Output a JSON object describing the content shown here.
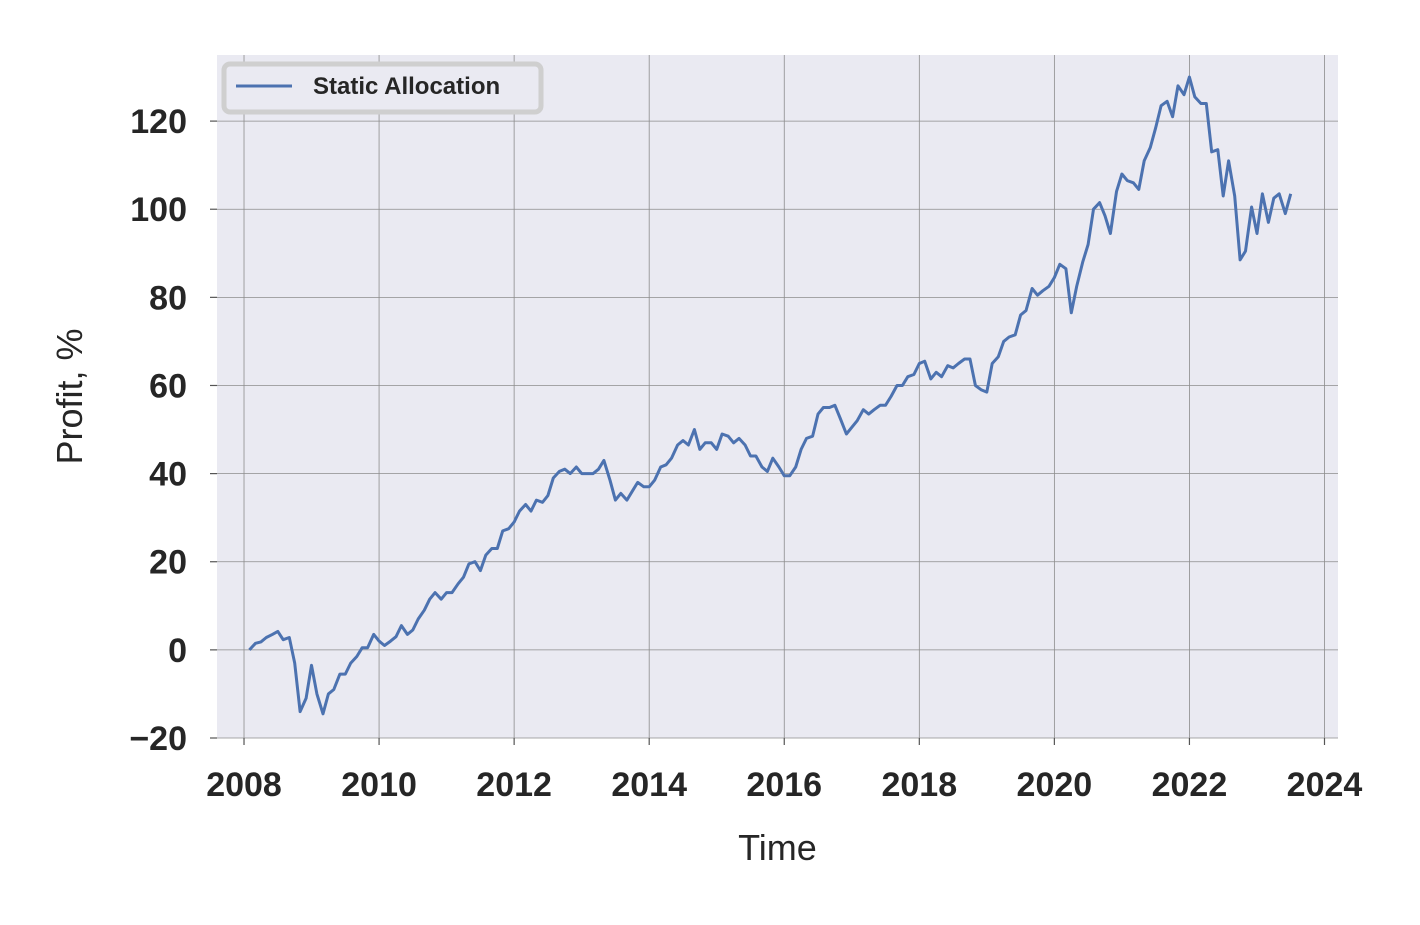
{
  "chart_data": {
    "type": "line",
    "title": "",
    "xlabel": "Time",
    "ylabel": "Profit, %",
    "xlim": [
      2007.6,
      2024.2
    ],
    "ylim": [
      -20,
      135
    ],
    "x_ticks": [
      2008,
      2010,
      2012,
      2014,
      2016,
      2018,
      2020,
      2022,
      2024
    ],
    "x_tick_labels": [
      "2008",
      "2010",
      "2012",
      "2014",
      "2016",
      "2018",
      "2020",
      "2022",
      "2024"
    ],
    "y_ticks": [
      -20,
      0,
      20,
      40,
      60,
      80,
      100,
      120
    ],
    "y_tick_labels": [
      "−20",
      "0",
      "20",
      "40",
      "60",
      "80",
      "100",
      "120"
    ],
    "grid": true,
    "legend_position": "top-left",
    "colors": {
      "background": "#EAEAF2",
      "grid": "#8c8c8c",
      "series": "#4C72B0"
    },
    "series": [
      {
        "name": "Static Allocation",
        "x": [
          2008.08,
          2008.17,
          2008.25,
          2008.33,
          2008.42,
          2008.5,
          2008.58,
          2008.67,
          2008.75,
          2008.83,
          2008.92,
          2009.0,
          2009.08,
          2009.17,
          2009.25,
          2009.33,
          2009.42,
          2009.5,
          2009.58,
          2009.67,
          2009.75,
          2009.83,
          2009.92,
          2010.0,
          2010.08,
          2010.17,
          2010.25,
          2010.33,
          2010.42,
          2010.5,
          2010.58,
          2010.67,
          2010.75,
          2010.83,
          2010.92,
          2011.0,
          2011.08,
          2011.17,
          2011.25,
          2011.33,
          2011.42,
          2011.5,
          2011.58,
          2011.67,
          2011.75,
          2011.83,
          2011.92,
          2012.0,
          2012.08,
          2012.17,
          2012.25,
          2012.33,
          2012.42,
          2012.5,
          2012.58,
          2012.67,
          2012.75,
          2012.83,
          2012.92,
          2013.0,
          2013.08,
          2013.17,
          2013.25,
          2013.33,
          2013.42,
          2013.5,
          2013.58,
          2013.67,
          2013.75,
          2013.83,
          2013.92,
          2014.0,
          2014.08,
          2014.17,
          2014.25,
          2014.33,
          2014.42,
          2014.5,
          2014.58,
          2014.67,
          2014.75,
          2014.83,
          2014.92,
          2015.0,
          2015.08,
          2015.17,
          2015.25,
          2015.33,
          2015.42,
          2015.5,
          2015.58,
          2015.67,
          2015.75,
          2015.83,
          2015.92,
          2016.0,
          2016.08,
          2016.17,
          2016.25,
          2016.33,
          2016.42,
          2016.5,
          2016.58,
          2016.67,
          2016.75,
          2016.83,
          2016.92,
          2017.0,
          2017.08,
          2017.17,
          2017.25,
          2017.33,
          2017.42,
          2017.5,
          2017.58,
          2017.67,
          2017.75,
          2017.83,
          2017.92,
          2018.0,
          2018.08,
          2018.17,
          2018.25,
          2018.33,
          2018.42,
          2018.5,
          2018.58,
          2018.67,
          2018.75,
          2018.83,
          2018.92,
          2019.0,
          2019.08,
          2019.17,
          2019.25,
          2019.33,
          2019.42,
          2019.5,
          2019.58,
          2019.67,
          2019.75,
          2019.83,
          2019.92,
          2020.0,
          2020.08,
          2020.17,
          2020.25,
          2020.33,
          2020.42,
          2020.5,
          2020.58,
          2020.67,
          2020.75,
          2020.83,
          2020.92,
          2021.0,
          2021.08,
          2021.17,
          2021.25,
          2021.33,
          2021.42,
          2021.5,
          2021.58,
          2021.67,
          2021.75,
          2021.83,
          2021.92,
          2022.0,
          2022.08,
          2022.17,
          2022.25,
          2022.33,
          2022.42,
          2022.5,
          2022.58,
          2022.67,
          2022.75,
          2022.83,
          2022.92,
          2023.0,
          2023.08,
          2023.17,
          2023.25,
          2023.33,
          2023.42,
          2023.5
        ],
        "values": [
          0.0,
          1.5,
          1.8,
          2.8,
          3.5,
          4.2,
          2.3,
          2.8,
          -3.0,
          -14.0,
          -11.0,
          -3.5,
          -10.0,
          -14.5,
          -10.0,
          -9.0,
          -5.5,
          -5.5,
          -3.0,
          -1.5,
          0.5,
          0.5,
          3.5,
          2.0,
          1.0,
          2.0,
          3.0,
          5.5,
          3.5,
          4.5,
          7.0,
          9.0,
          11.5,
          13.0,
          11.5,
          13.0,
          13.0,
          15.0,
          16.5,
          19.5,
          20.0,
          18.0,
          21.5,
          23.0,
          23.0,
          27.0,
          27.5,
          29.0,
          31.5,
          33.0,
          31.5,
          34.0,
          33.5,
          35.0,
          39.0,
          40.5,
          41.0,
          40.0,
          41.5,
          40.0,
          40.0,
          40.0,
          41.0,
          43.0,
          38.5,
          34.0,
          35.5,
          34.0,
          36.0,
          38.0,
          37.0,
          37.0,
          38.5,
          41.5,
          42.0,
          43.5,
          46.5,
          47.5,
          46.5,
          50.0,
          45.5,
          47.0,
          47.0,
          45.5,
          49.0,
          48.5,
          47.0,
          48.0,
          46.5,
          44.0,
          44.0,
          41.5,
          40.5,
          43.5,
          41.5,
          39.5,
          39.5,
          41.5,
          45.5,
          48.0,
          48.5,
          53.5,
          55.0,
          55.0,
          55.5,
          52.5,
          49.0,
          50.5,
          52.0,
          54.5,
          53.5,
          54.5,
          55.5,
          55.5,
          57.5,
          60.0,
          60.0,
          62.0,
          62.5,
          65.0,
          65.5,
          61.5,
          63.0,
          62.0,
          64.5,
          64.0,
          65.0,
          66.0,
          66.0,
          60.0,
          59.0,
          58.5,
          65.0,
          66.5,
          70.0,
          71.0,
          71.5,
          76.0,
          77.0,
          82.0,
          80.5,
          81.5,
          82.5,
          84.5,
          87.5,
          86.5,
          76.5,
          82.5,
          88.0,
          92.0,
          100.0,
          101.5,
          98.5,
          94.5,
          104.0,
          108.0,
          106.5,
          106.0,
          104.5,
          111.0,
          114.0,
          118.5,
          123.5,
          124.5,
          121.0,
          128.0,
          126.0,
          130.0,
          125.5,
          124.0,
          124.0,
          113.0,
          113.5,
          103.0,
          111.0,
          103.0,
          88.5,
          90.5,
          100.5,
          94.5,
          103.5,
          97.0,
          102.5,
          103.5,
          99.0,
          103.5
        ]
      }
    ]
  }
}
